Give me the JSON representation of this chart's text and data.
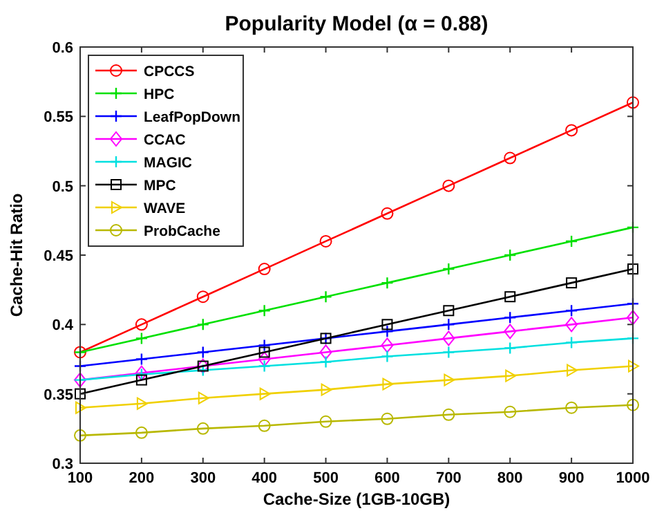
{
  "chart_data": {
    "type": "line",
    "title": "Popularity Model (α = 0.88)",
    "xlabel": "Cache-Size (1GB-10GB)",
    "ylabel": "Cache-Hit Ratio",
    "x": [
      100,
      200,
      300,
      400,
      500,
      600,
      700,
      800,
      900,
      1000
    ],
    "xlim": [
      100,
      1000
    ],
    "xticks": [
      100,
      200,
      300,
      400,
      500,
      600,
      700,
      800,
      900,
      1000
    ],
    "ylim": [
      0.3,
      0.6
    ],
    "yticks": [
      0.3,
      0.35,
      0.4,
      0.45,
      0.5,
      0.55,
      0.6
    ],
    "grid": false,
    "legend": "top left",
    "line_style": "solid",
    "series": [
      {
        "name": "CPCCS",
        "color": "#ff0000",
        "marker": "circle",
        "values": [
          0.38,
          0.4,
          0.42,
          0.44,
          0.46,
          0.48,
          0.5,
          0.52,
          0.54,
          0.56
        ]
      },
      {
        "name": "HPC",
        "color": "#00e000",
        "marker": "cross",
        "values": [
          0.38,
          0.39,
          0.4,
          0.41,
          0.42,
          0.43,
          0.44,
          0.45,
          0.46,
          0.47
        ]
      },
      {
        "name": "LeafPopDown",
        "color": "#0000ff",
        "marker": "cross",
        "values": [
          0.37,
          0.375,
          0.38,
          0.385,
          0.39,
          0.395,
          0.4,
          0.405,
          0.41,
          0.415
        ]
      },
      {
        "name": "CCAC",
        "color": "#ff00ff",
        "marker": "diamond",
        "values": [
          0.36,
          0.365,
          0.37,
          0.375,
          0.38,
          0.385,
          0.39,
          0.395,
          0.4,
          0.405
        ]
      },
      {
        "name": "MAGIC",
        "color": "#00e0e0",
        "marker": "cross",
        "values": [
          0.36,
          0.364,
          0.367,
          0.37,
          0.373,
          0.377,
          0.38,
          0.383,
          0.387,
          0.39
        ]
      },
      {
        "name": "MPC",
        "color": "#000000",
        "marker": "square",
        "values": [
          0.35,
          0.36,
          0.37,
          0.38,
          0.39,
          0.4,
          0.41,
          0.42,
          0.43,
          0.44
        ]
      },
      {
        "name": "WAVE",
        "color": "#f0d000",
        "marker": "triangle",
        "values": [
          0.34,
          0.343,
          0.347,
          0.35,
          0.353,
          0.357,
          0.36,
          0.363,
          0.367,
          0.37
        ]
      },
      {
        "name": "ProbCache",
        "color": "#b8b800",
        "marker": "circle",
        "values": [
          0.32,
          0.322,
          0.325,
          0.327,
          0.33,
          0.332,
          0.335,
          0.337,
          0.34,
          0.342
        ]
      }
    ]
  }
}
